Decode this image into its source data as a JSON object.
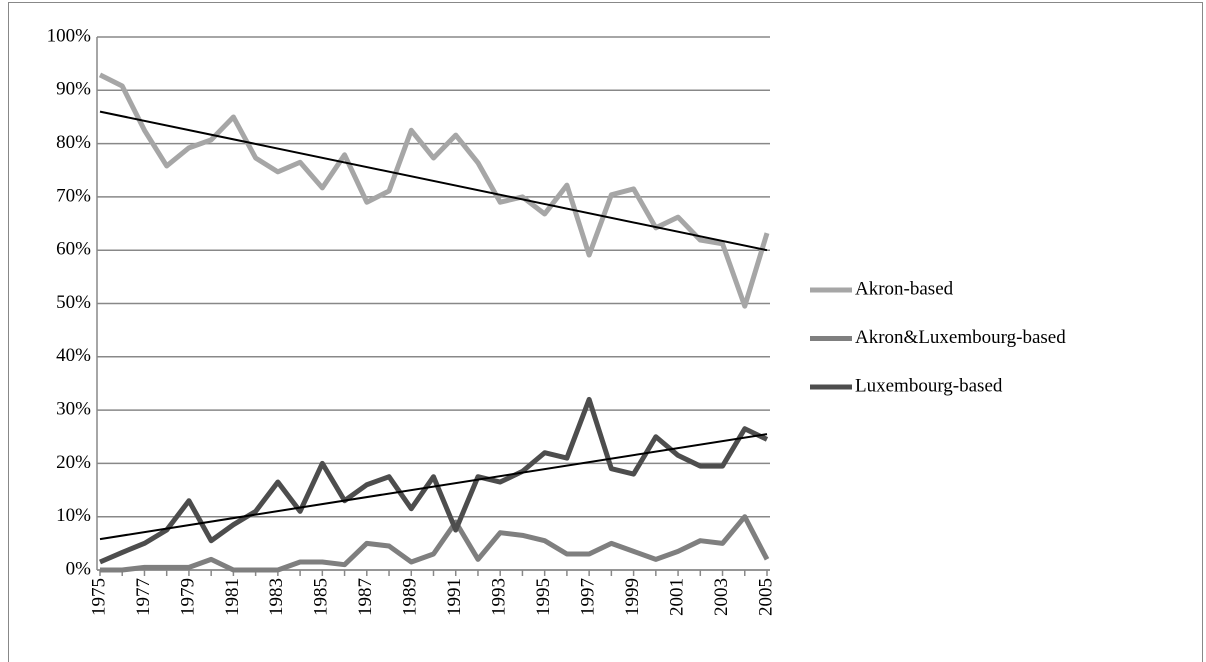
{
  "chart_data": {
    "type": "line",
    "categories": [
      "1975",
      null,
      "1977",
      null,
      "1979",
      null,
      "1981",
      null,
      "1983",
      null,
      "1985",
      null,
      "1987",
      null,
      "1989",
      null,
      "1991",
      null,
      "1993",
      null,
      "1995",
      null,
      "1997",
      null,
      "1999",
      null,
      "2001",
      null,
      "2003",
      null,
      "2005"
    ],
    "series": [
      {
        "name": "Akron-based",
        "color": "#a6a6a6",
        "values": [
          92.9,
          90.8,
          82.5,
          75.8,
          79.2,
          80.7,
          85,
          77.3,
          74.7,
          76.5,
          71.7,
          77.9,
          69,
          71.1,
          82.5,
          77.3,
          81.6,
          76.4,
          69,
          70,
          66.8,
          72.2,
          59.1,
          70.4,
          71.5,
          64.2,
          66.2,
          61.9,
          61.2,
          49.5,
          63.2
        ]
      },
      {
        "name": "Akron&Luxembourg-based",
        "color": "#7f7f7f",
        "values": [
          0,
          0,
          0.5,
          0.5,
          0.5,
          2,
          0,
          0,
          0,
          1.5,
          1.5,
          1,
          5,
          4.5,
          1.5,
          3,
          9,
          2,
          7,
          6.5,
          5.5,
          3,
          3,
          5,
          3.5,
          2,
          3.5,
          5.5,
          5,
          10,
          2
        ]
      },
      {
        "name": "Luxembourg-based",
        "color": "#4d4d4d",
        "values": [
          1.5,
          3.3,
          5,
          7.5,
          13,
          5.5,
          8.5,
          11,
          16.5,
          11,
          20,
          13,
          16,
          17.5,
          11.5,
          17.5,
          7.5,
          17.5,
          16.5,
          18.5,
          22,
          21,
          32,
          19,
          18,
          25,
          21.5,
          19.5,
          19.5,
          26.5,
          24.5
        ]
      }
    ],
    "trendlines": [
      {
        "color": "#000000",
        "values": [
          86,
          60
        ]
      },
      {
        "color": "#000000",
        "values": [
          5.8,
          25.5
        ]
      }
    ],
    "ylim": [
      0,
      100
    ],
    "yticks": [
      {
        "value": 0,
        "label": "0%"
      },
      {
        "value": 10,
        "label": "10%"
      },
      {
        "value": 20,
        "label": "20%"
      },
      {
        "value": 30,
        "label": "30%"
      },
      {
        "value": 40,
        "label": "40%"
      },
      {
        "value": 50,
        "label": "50%"
      },
      {
        "value": 60,
        "label": "60%"
      },
      {
        "value": 70,
        "label": "70%"
      },
      {
        "value": 80,
        "label": "80%"
      },
      {
        "value": 90,
        "label": "90%"
      },
      {
        "value": 100,
        "label": "100%"
      }
    ],
    "grid": true,
    "legend": "right"
  }
}
